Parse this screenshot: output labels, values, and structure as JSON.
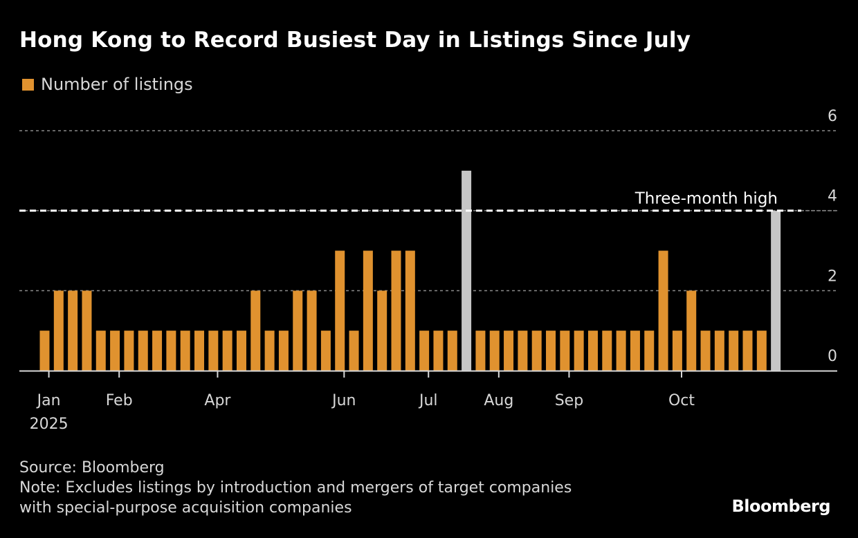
{
  "title": "Hong Kong to Record Busiest Day in Listings Since July",
  "legend": {
    "label": "Number of listings",
    "color": "#e0922f"
  },
  "footer": {
    "source": "Source: Bloomberg",
    "note_line1": "Note: Excludes listings by introduction and mergers of target companies",
    "note_line2": "with special-purpose acquisition companies"
  },
  "brand": "Bloomberg",
  "chart_data": {
    "type": "bar",
    "title": "Hong Kong to Record Busiest Day in Listings Since July",
    "xlabel": "",
    "ylabel": "",
    "ylim": [
      0,
      6
    ],
    "yticks": [
      0,
      2,
      4,
      6
    ],
    "grid": true,
    "legend_position": "top-left",
    "series": [
      {
        "name": "Number of listings",
        "color": "#e0922f",
        "highlight_color": "#c6c6c6",
        "values": [
          1,
          2,
          2,
          2,
          1,
          1,
          1,
          1,
          1,
          1,
          1,
          1,
          1,
          1,
          1,
          2,
          1,
          1,
          2,
          2,
          1,
          3,
          1,
          3,
          2,
          3,
          3,
          1,
          1,
          1,
          5,
          1,
          1,
          1,
          1,
          1,
          1,
          1,
          1,
          1,
          1,
          1,
          1,
          1,
          3,
          1,
          2,
          1,
          1,
          1,
          1,
          1,
          4
        ],
        "highlighted_indices": [
          30,
          52
        ]
      }
    ],
    "x_ticks": [
      {
        "label": "Jan",
        "sublabel": "2025",
        "position": 0.3
      },
      {
        "label": "Feb",
        "position": 5.3
      },
      {
        "label": "Apr",
        "position": 12.3
      },
      {
        "label": "Jun",
        "position": 21.3
      },
      {
        "label": "Jul",
        "position": 27.3
      },
      {
        "label": "Aug",
        "position": 32.3
      },
      {
        "label": "Sep",
        "position": 37.3
      },
      {
        "label": "Oct",
        "position": 45.3
      }
    ],
    "annotations": [
      {
        "type": "hline",
        "value": 4,
        "label": "Three-month high",
        "style": "dashed"
      }
    ]
  }
}
